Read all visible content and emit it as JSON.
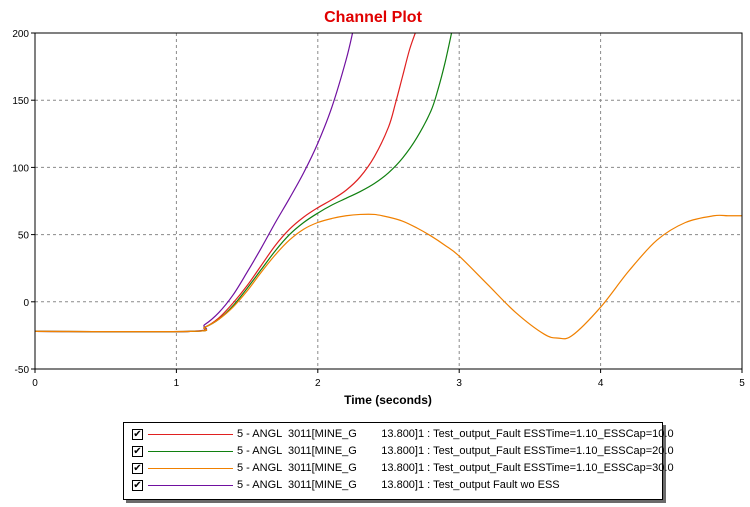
{
  "chart_data": {
    "type": "line",
    "title": "Channel Plot",
    "xlabel": "Time (seconds)",
    "ylabel": "",
    "xlim": [
      0,
      5
    ],
    "ylim": [
      -50,
      200
    ],
    "x_ticks": [
      0,
      1,
      2,
      3,
      4,
      5
    ],
    "y_ticks": [
      -50,
      0,
      50,
      100,
      150,
      200
    ],
    "grid": "dashed",
    "legend_placement": "bottom",
    "title_color": "#e00000",
    "series": [
      {
        "name": "5 - ANGL  3011[MINE_G        13.800]1 : Test_output_Fault ESSTime=1.10_ESSCap=10.0",
        "color": "#e02020",
        "checked": true,
        "x": [
          0,
          1.1,
          1.2,
          1.3,
          1.4,
          1.5,
          1.6,
          1.7,
          1.8,
          1.9,
          2.0,
          2.1,
          2.2,
          2.3,
          2.4,
          2.5,
          2.55,
          2.6,
          2.65,
          2.7
        ],
        "y": [
          -22,
          -22,
          -19,
          -12,
          -1,
          12,
          27,
          42,
          54,
          63,
          70,
          76,
          83,
          93,
          108,
          130,
          148,
          168,
          188,
          203
        ]
      },
      {
        "name": "5 - ANGL  3011[MINE_G        13.800]1 : Test_output_Fault ESSTime=1.10_ESSCap=20.0",
        "color": "#108010",
        "checked": true,
        "x": [
          0,
          1.1,
          1.2,
          1.3,
          1.4,
          1.5,
          1.6,
          1.7,
          1.8,
          1.9,
          2.0,
          2.1,
          2.2,
          2.3,
          2.4,
          2.5,
          2.6,
          2.7,
          2.8,
          2.85,
          2.9,
          2.95
        ],
        "y": [
          -22,
          -22,
          -19,
          -13,
          -3,
          10,
          24,
          38,
          50,
          59,
          66,
          72,
          77,
          82,
          88,
          96,
          107,
          122,
          142,
          158,
          178,
          202
        ]
      },
      {
        "name": "5 - ANGL  3011[MINE_G        13.800]1 : Test_output_Fault ESSTime=1.10_ESSCap=30.0",
        "color": "#f08000",
        "checked": true,
        "x": [
          0,
          1.1,
          1.2,
          1.3,
          1.4,
          1.5,
          1.6,
          1.7,
          1.8,
          1.9,
          2.0,
          2.1,
          2.2,
          2.3,
          2.4,
          2.5,
          2.6,
          2.7,
          2.8,
          2.9,
          3.0,
          3.2,
          3.4,
          3.6,
          3.7,
          3.8,
          4.0,
          4.2,
          4.4,
          4.6,
          4.8,
          4.9,
          5.0
        ],
        "y": [
          -22,
          -22,
          -19,
          -13,
          -4,
          8,
          22,
          35,
          46,
          54,
          59,
          62,
          64,
          65,
          65,
          63,
          60,
          55,
          49,
          42,
          34,
          13,
          -8,
          -24,
          -27,
          -25,
          -4,
          23,
          46,
          59,
          64,
          64,
          64
        ]
      },
      {
        "name": "5 - ANGL  3011[MINE_G        13.800]1 : Test_output Fault wo ESS",
        "color": "#7010a0",
        "checked": true,
        "x": [
          0,
          1.1,
          1.2,
          1.3,
          1.4,
          1.5,
          1.6,
          1.7,
          1.8,
          1.9,
          2.0,
          2.1,
          2.2,
          2.25
        ],
        "y": [
          -22,
          -22,
          -17,
          -8,
          5,
          22,
          40,
          59,
          77,
          96,
          118,
          145,
          180,
          202
        ]
      }
    ]
  }
}
